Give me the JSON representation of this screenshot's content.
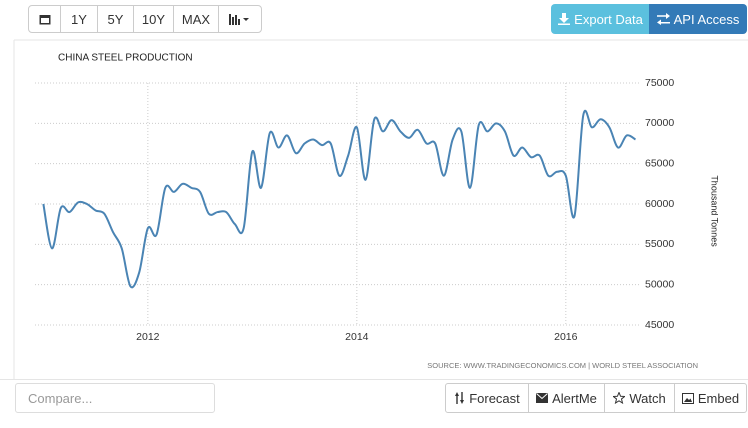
{
  "toolbar": {
    "ranges": [
      "1Y",
      "5Y",
      "10Y",
      "MAX"
    ],
    "export": "Export Data",
    "api": "API Access"
  },
  "compare_placeholder": "Compare...",
  "actions": [
    "Forecast",
    "AlertMe",
    "Watch",
    "Embed"
  ],
  "chart_data": {
    "type": "line",
    "title": "CHINA STEEL PRODUCTION",
    "y_label": "Thousand Tonnes",
    "source": "SOURCE: WWW.TRADINGECONOMICS.COM | WORLD STEEL ASSOCIATION",
    "x": [
      2011,
      2011.083,
      2011.167,
      2011.25,
      2011.333,
      2011.417,
      2011.5,
      2011.583,
      2011.667,
      2011.75,
      2011.833,
      2011.917,
      2012,
      2012.083,
      2012.167,
      2012.25,
      2012.333,
      2012.417,
      2012.5,
      2012.583,
      2012.667,
      2012.75,
      2012.833,
      2012.917,
      2013,
      2013.083,
      2013.167,
      2013.25,
      2013.333,
      2013.417,
      2013.5,
      2013.583,
      2013.667,
      2013.75,
      2013.833,
      2013.917,
      2014,
      2014.083,
      2014.167,
      2014.25,
      2014.333,
      2014.417,
      2014.5,
      2014.583,
      2014.667,
      2014.75,
      2014.833,
      2014.917,
      2015,
      2015.083,
      2015.167,
      2015.25,
      2015.333,
      2015.417,
      2015.5,
      2015.583,
      2015.667,
      2015.75,
      2015.833,
      2015.917,
      2016,
      2016.083,
      2016.167,
      2016.25,
      2016.333,
      2016.417,
      2016.5,
      2016.583,
      2016.667
    ],
    "series": [
      {
        "name": "China Steel Production",
        "color": "#4a84b4",
        "values": [
          60000,
          54500,
          59500,
          59000,
          60200,
          60000,
          59200,
          58800,
          56500,
          54500,
          49800,
          51500,
          57000,
          56200,
          62000,
          61500,
          62500,
          62000,
          61500,
          58800,
          59000,
          59000,
          57500,
          57000,
          66500,
          62000,
          68800,
          67000,
          68500,
          66300,
          67500,
          68000,
          67300,
          67500,
          63500,
          66000,
          69500,
          63000,
          70500,
          69000,
          70400,
          69000,
          68200,
          69200,
          67500,
          67500,
          63500,
          68000,
          69000,
          62000,
          69800,
          69000,
          70000,
          69000,
          66000,
          67000,
          65800,
          66000,
          63500,
          64000,
          63500,
          58500,
          71000,
          69500,
          70500,
          69500,
          67000,
          68500,
          68000
        ]
      }
    ],
    "xlim": [
      2010.92,
      2016.71
    ],
    "xticks": [
      2012,
      2014,
      2016
    ],
    "ylim": [
      45000,
      75000
    ],
    "yticks": [
      45000,
      50000,
      55000,
      60000,
      65000,
      70000,
      75000
    ],
    "grid": true
  }
}
